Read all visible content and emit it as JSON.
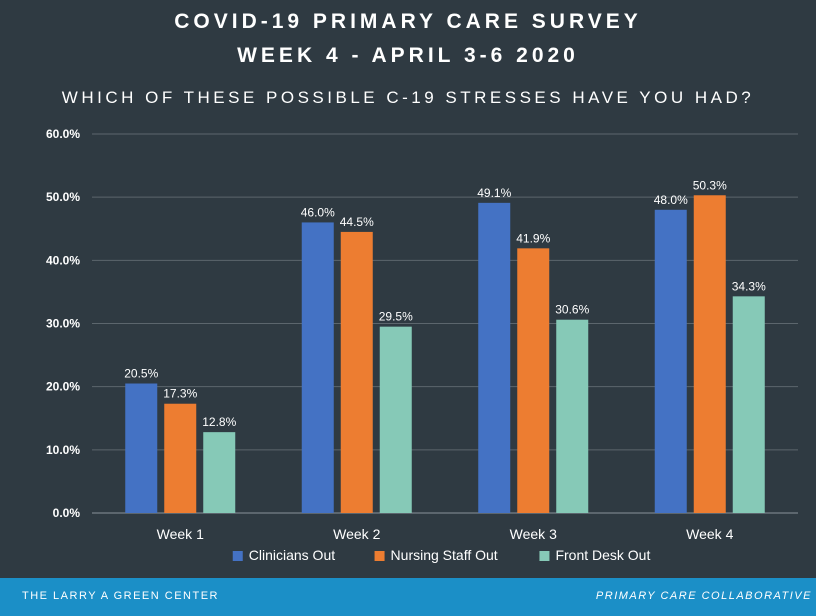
{
  "header": {
    "title_line1": "COVID-19 PRIMARY CARE SURVEY",
    "title_line2": "WEEK 4 - APRIL 3-6 2020",
    "question": "WHICH OF THESE POSSIBLE C-19 STRESSES HAVE YOU HAD?"
  },
  "footer": {
    "left": "THE LARRY A GREEN CENTER",
    "right": "PRIMARY CARE COLLABORATIVE"
  },
  "colors": {
    "background": "#2f3a42",
    "footer": "#1b8fc7",
    "gridline": "#5c666d"
  },
  "chart_data": {
    "type": "bar",
    "title": "WHICH OF THESE POSSIBLE C-19 STRESSES HAVE YOU HAD?",
    "categories": [
      "Week 1",
      "Week 2",
      "Week 3",
      "Week 4"
    ],
    "series": [
      {
        "name": "Clinicians Out",
        "color": "#4472c4",
        "values": [
          20.5,
          46.0,
          49.1,
          48.0
        ]
      },
      {
        "name": "Nursing Staff Out",
        "color": "#ed7d31",
        "values": [
          17.3,
          44.5,
          41.9,
          50.3
        ]
      },
      {
        "name": "Front Desk Out",
        "color": "#86c9b7",
        "values": [
          12.8,
          29.5,
          30.6,
          34.3
        ]
      }
    ],
    "ylim": [
      0,
      60
    ],
    "yticks": [
      0,
      10,
      20,
      30,
      40,
      50,
      60
    ],
    "ytick_labels": [
      "0.0%",
      "10.0%",
      "20.0%",
      "30.0%",
      "40.0%",
      "50.0%",
      "60.0%"
    ],
    "data_labels": [
      [
        "20.5%",
        "46.0%",
        "49.1%",
        "48.0%"
      ],
      [
        "17.3%",
        "44.5%",
        "41.9%",
        "50.3%"
      ],
      [
        "12.8%",
        "29.5%",
        "30.6%",
        "34.3%"
      ]
    ],
    "grid": true,
    "legend": "bottom"
  }
}
